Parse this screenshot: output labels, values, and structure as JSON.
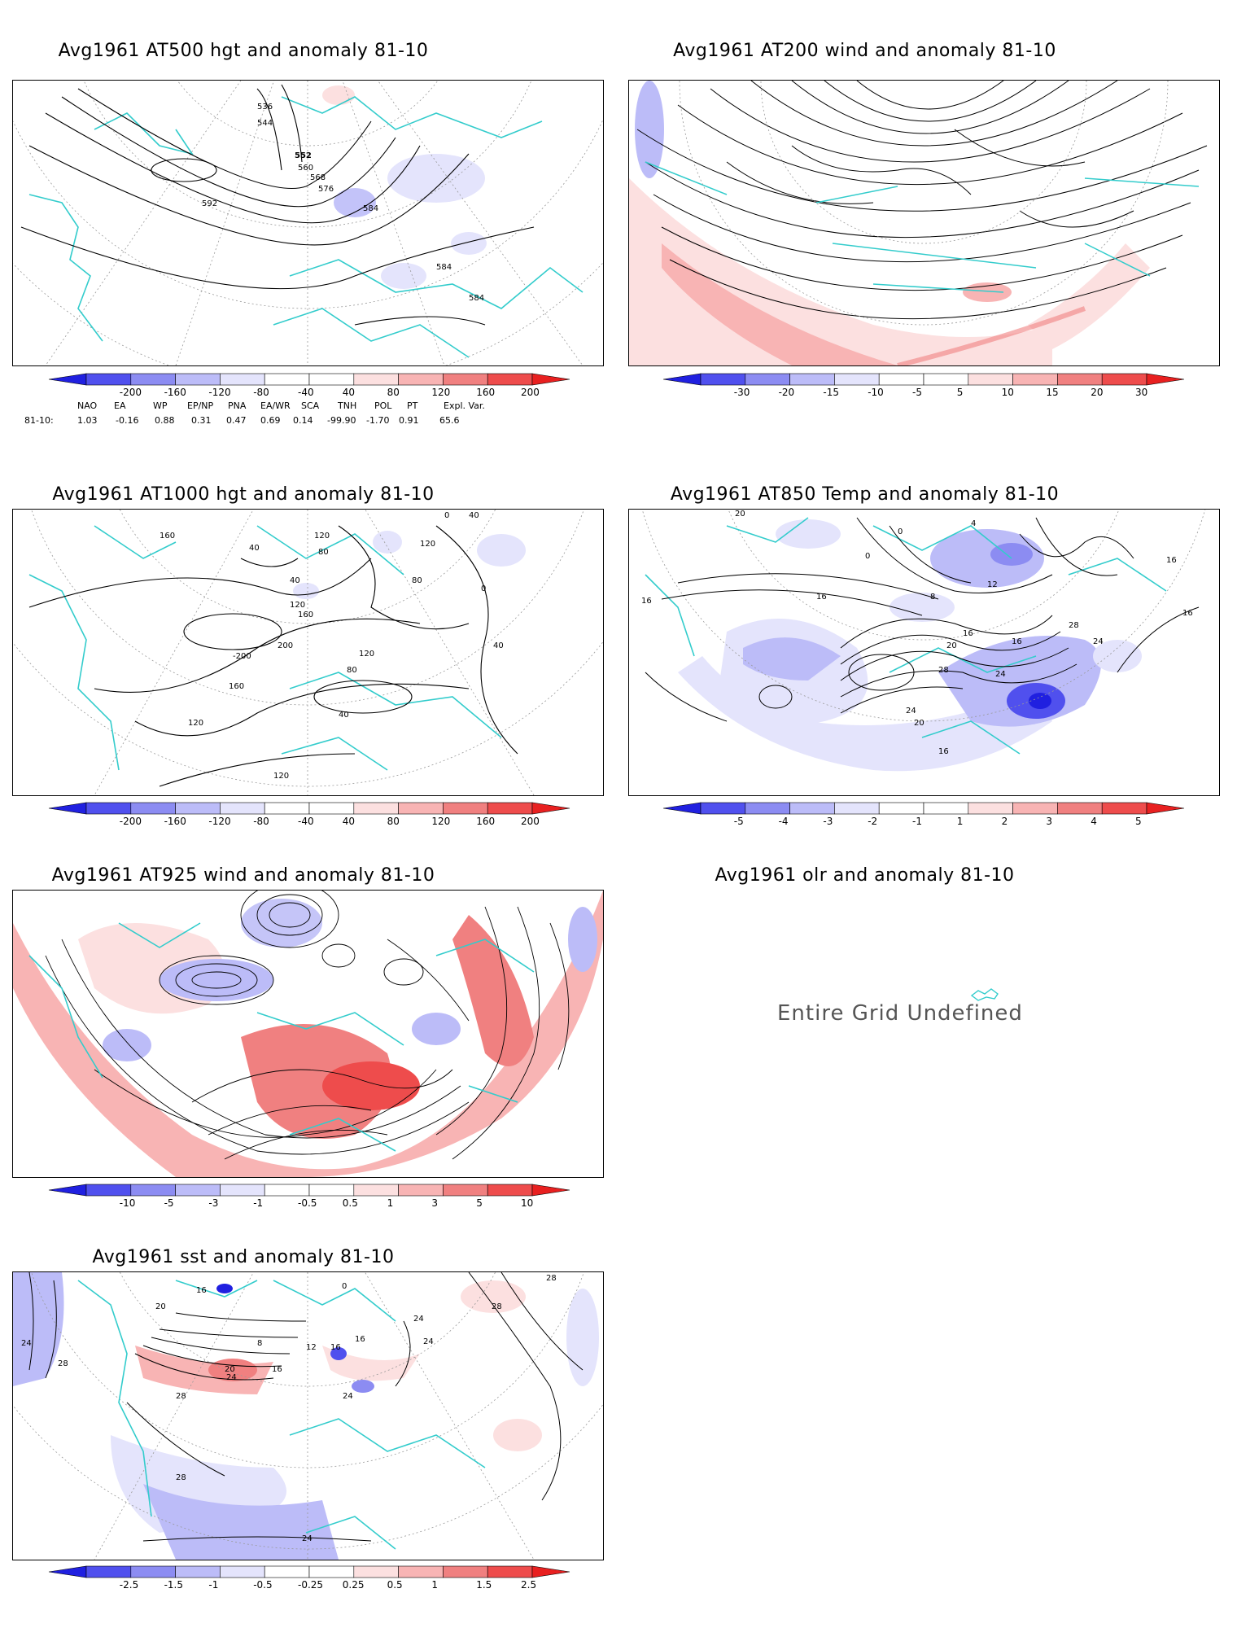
{
  "panels": {
    "p500": {
      "title": "Avg1961 AT500 hgt and anomaly 81-10",
      "contour_labels": [
        "536",
        "544",
        "552",
        "560",
        "568",
        "576",
        "584",
        "592",
        "584",
        "584"
      ]
    },
    "p200": {
      "title": "Avg1961 AT200 wind and anomaly 81-10"
    },
    "p1000": {
      "title": "Avg1961 AT1000 hgt and anomaly 81-10",
      "contour_labels": [
        "160",
        "40",
        "120",
        "80",
        "40",
        "120",
        "160",
        "-200",
        "200",
        "160",
        "120",
        "80",
        "40",
        "0",
        "40",
        "120",
        "80",
        "120",
        "120",
        "0",
        "40"
      ]
    },
    "p850": {
      "title": "Avg1961 AT850 Temp and anomaly 81-10",
      "contour_labels": [
        "20",
        "0",
        "4",
        "0",
        "16",
        "16",
        "8",
        "12",
        "16",
        "20",
        "16",
        "28",
        "24",
        "24",
        "20",
        "16",
        "16",
        "16",
        "28",
        "24"
      ]
    },
    "p925": {
      "title": "Avg1961 AT925 wind and anomaly 81-10"
    },
    "polr": {
      "title": "Avg1961 olr and anomaly 81-10",
      "message": "Entire Grid Undefined"
    },
    "psst": {
      "title": "Avg1961 sst and anomaly 81-10",
      "contour_labels": [
        "24",
        "28",
        "20",
        "16",
        "8",
        "12",
        "16",
        "16",
        "20",
        "24",
        "16",
        "28",
        "24",
        "28",
        "24",
        "28",
        "28",
        "24",
        "0",
        "24"
      ]
    }
  },
  "colorbars": {
    "hgt": [
      "-200",
      "-160",
      "-120",
      "-80",
      "-40",
      "40",
      "80",
      "120",
      "160",
      "200"
    ],
    "wind200": [
      "-30",
      "-20",
      "-15",
      "-10",
      "-5",
      "5",
      "10",
      "15",
      "20",
      "30"
    ],
    "temp": [
      "-5",
      "-4",
      "-3",
      "-2",
      "-1",
      "1",
      "2",
      "3",
      "4",
      "5"
    ],
    "wind925": [
      "-10",
      "-5",
      "-3",
      "-1",
      "-0.5",
      "0.5",
      "1",
      "3",
      "5",
      "10"
    ],
    "sst": [
      "-2.5",
      "-1.5",
      "-1",
      "-0.5",
      "-0.25",
      "0.25",
      "0.5",
      "1",
      "1.5",
      "2.5"
    ]
  },
  "colors": [
    "#2020e0",
    "#5050ee",
    "#8c8cf2",
    "#bcbcf8",
    "#e4e4fc",
    "#ffffff",
    "#fce0e0",
    "#f8b4b4",
    "#f08080",
    "#ee4c4c",
    "#e82020"
  ],
  "teleconnections": {
    "row_label": "81-10:",
    "names": [
      "NAO",
      "EA",
      "WP",
      "EP/NP",
      "PNA",
      "EA/WR",
      "SCA",
      "TNH",
      "POL",
      "PT",
      "Expl. Var."
    ],
    "values": [
      "1.03",
      "-0.16",
      "0.88",
      "0.31",
      "0.47",
      "0.69",
      "0.14",
      "-99.90",
      "-1.70",
      "0.91",
      "65.6"
    ]
  }
}
